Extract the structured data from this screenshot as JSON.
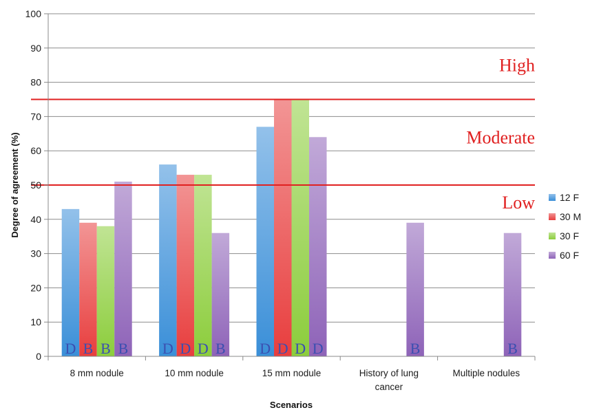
{
  "chart_data": {
    "type": "bar",
    "title": "",
    "xlabel": "Scenarios",
    "ylabel": "Degree of agreement (%)",
    "ylim": [
      0,
      100
    ],
    "yticks": [
      0,
      10,
      20,
      30,
      40,
      50,
      60,
      70,
      80,
      90,
      100
    ],
    "grid": "horizontal",
    "legend_position": "right",
    "categories": [
      [
        "8 mm nodule"
      ],
      [
        "10 mm nodule"
      ],
      [
        "15 mm nodule"
      ],
      [
        "History of lung",
        "cancer"
      ],
      [
        "Multiple nodules"
      ]
    ],
    "series": [
      {
        "name": "12 F",
        "color": "#3a8fd8",
        "values": [
          43,
          56,
          67,
          null,
          null
        ],
        "letters": [
          "D",
          "D",
          "D",
          "",
          ""
        ]
      },
      {
        "name": "30 M",
        "color": "#e83e3e",
        "values": [
          39,
          53,
          75,
          null,
          null
        ],
        "letters": [
          "B",
          "D",
          "D",
          "",
          ""
        ]
      },
      {
        "name": "30 F",
        "color": "#8ccd3c",
        "values": [
          38,
          53,
          75,
          null,
          null
        ],
        "letters": [
          "B",
          "D",
          "D",
          "",
          ""
        ]
      },
      {
        "name": "60 F",
        "color": "#8e63b8",
        "values": [
          51,
          36,
          64,
          39,
          36
        ],
        "letters": [
          "B",
          "B",
          "D",
          "B",
          "B"
        ]
      }
    ],
    "reference_lines": [
      {
        "value": 75,
        "color": "#e02020"
      },
      {
        "value": 50,
        "color": "#e02020"
      }
    ],
    "band_labels": [
      {
        "text": "High",
        "at": 85,
        "color": "#e02020"
      },
      {
        "text": "Moderate",
        "at": 64,
        "color": "#e02020"
      },
      {
        "text": "Low",
        "at": 45,
        "color": "#e02020"
      }
    ],
    "letter_color": "#3b4fb0"
  }
}
